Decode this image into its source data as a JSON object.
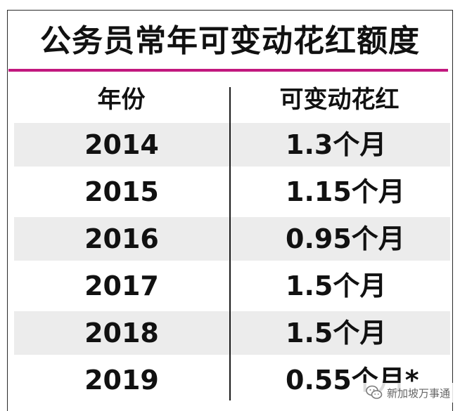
{
  "title": "公务员常年可变动花红额度",
  "header": {
    "year": "年份",
    "bonus": "可变动花红"
  },
  "rows": [
    {
      "year": "2014",
      "bonus": "1.3个月"
    },
    {
      "year": "2015",
      "bonus": "1.15个月"
    },
    {
      "year": "2016",
      "bonus": "0.95个月"
    },
    {
      "year": "2017",
      "bonus": "1.5个月"
    },
    {
      "year": "2018",
      "bonus": "1.5个月"
    },
    {
      "year": "2019",
      "bonus": "0.55个月*"
    }
  ],
  "watermark": {
    "text": "新加坡万事通",
    "icon": "wechat-icon"
  },
  "colors": {
    "accent_rule": "#c2187e",
    "shaded_row": "#ececec",
    "text": "#111111"
  }
}
